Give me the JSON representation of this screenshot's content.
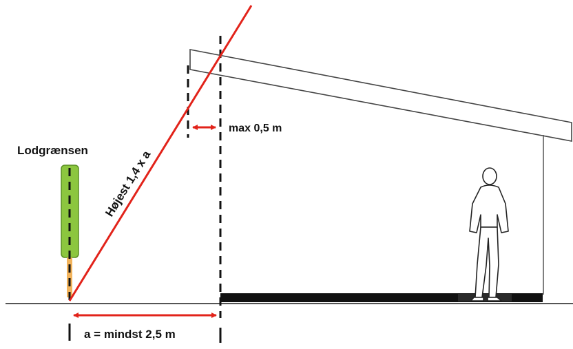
{
  "labels": {
    "boundary": "Lodgrænsen",
    "slope": "Højest 1,4 x a",
    "overhang": "max 0,5 m",
    "distance": "a = mindst 2,5 m"
  },
  "colors": {
    "line": "#e2231a",
    "hedge_fill": "#8cc63f",
    "hedge_stroke": "#5a8f22",
    "ground": "#555555",
    "floor": "#111111",
    "outline": "#444444"
  },
  "icons": {
    "person": "standing-man-figure"
  }
}
